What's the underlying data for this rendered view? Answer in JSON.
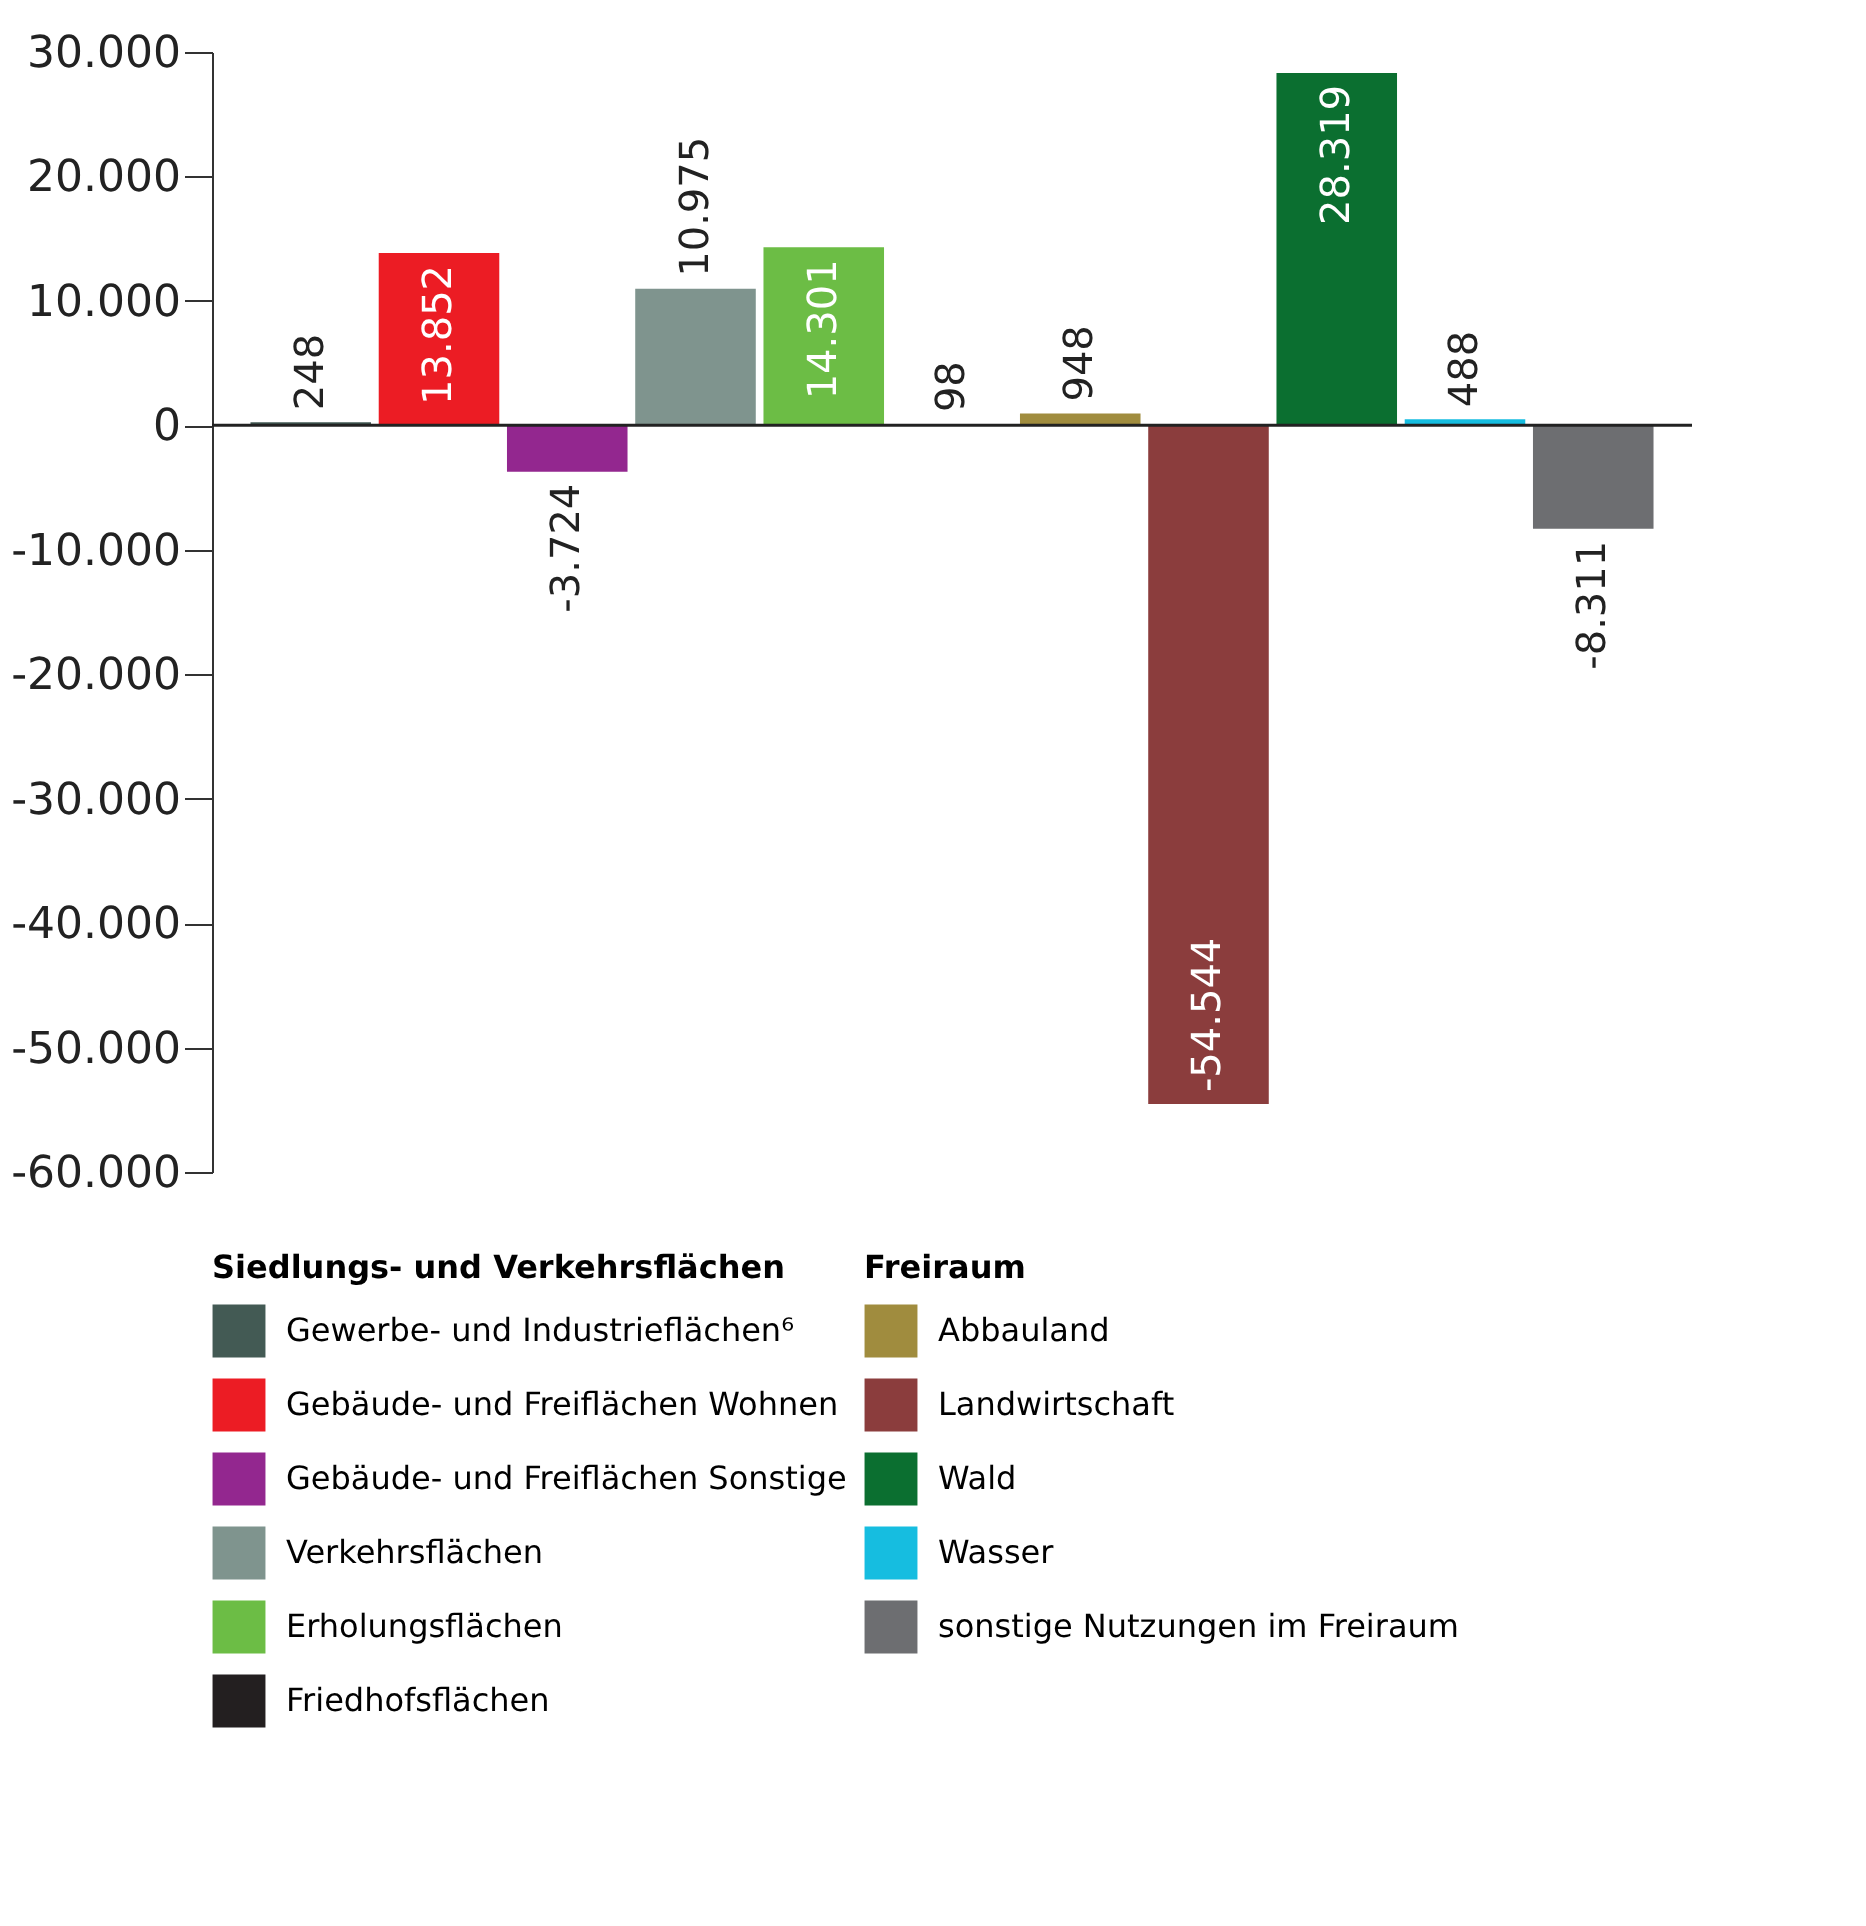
{
  "chart_data": {
    "type": "bar",
    "categories": [
      null,
      null,
      null,
      null,
      null,
      null,
      null,
      null,
      null,
      null,
      null
    ],
    "legend_title": "Siedlungs- und Verkehrsflächen",
    "annotations": [
      "Freiraum"
    ],
    "series": [
      {
        "name": "Gewerbe- und Industrieflächen⁶",
        "color": "#435a54",
        "values": [
          248,
          null,
          null,
          null,
          null,
          null,
          null,
          null,
          null,
          null,
          null
        ],
        "value_labels": [
          "248",
          null,
          null,
          null,
          null,
          null,
          null,
          null,
          null,
          null,
          null
        ]
      },
      {
        "name": "Gebäude- und Freiflächen Wohnen",
        "color": "#ec1c24",
        "values": [
          null,
          13852,
          null,
          null,
          null,
          null,
          null,
          null,
          null,
          null,
          null
        ],
        "value_labels": [
          null,
          "13.852",
          null,
          null,
          null,
          null,
          null,
          null,
          null,
          null,
          null
        ]
      },
      {
        "name": "Gebäude- und Freiflächen Sonstige",
        "color": "#93278f",
        "values": [
          null,
          null,
          -3724,
          null,
          null,
          null,
          null,
          null,
          null,
          null,
          null
        ],
        "value_labels": [
          null,
          null,
          "-3.724",
          null,
          null,
          null,
          null,
          null,
          null,
          null,
          null
        ]
      },
      {
        "name": "Verkehrsflächen",
        "color": "#7f948e",
        "values": [
          null,
          null,
          null,
          10975,
          null,
          null,
          null,
          null,
          null,
          null,
          null
        ],
        "value_labels": [
          null,
          null,
          null,
          "10.975",
          null,
          null,
          null,
          null,
          null,
          null,
          null
        ]
      },
      {
        "name": "Erholungsflächen",
        "color": "#6cbd45",
        "values": [
          null,
          null,
          null,
          null,
          14301,
          null,
          null,
          null,
          null,
          null,
          null
        ],
        "value_labels": [
          null,
          null,
          null,
          null,
          "14.301",
          null,
          null,
          null,
          null,
          null,
          null
        ]
      },
      {
        "name": "Friedhofsflächen",
        "color": "#231f20",
        "values": [
          null,
          null,
          null,
          null,
          null,
          98,
          null,
          null,
          null,
          null,
          null
        ],
        "value_labels": [
          null,
          null,
          null,
          null,
          null,
          "98",
          null,
          null,
          null,
          null,
          null
        ]
      },
      {
        "name": "Abbauland",
        "color": "#a08c3e",
        "values": [
          null,
          null,
          null,
          null,
          null,
          null,
          948,
          null,
          null,
          null,
          null
        ],
        "value_labels": [
          null,
          null,
          null,
          null,
          null,
          null,
          "948",
          null,
          null,
          null,
          null
        ]
      },
      {
        "name": "Landwirtschaft",
        "color": "#8b3d3d",
        "values": [
          null,
          null,
          null,
          null,
          null,
          null,
          null,
          -54544,
          null,
          null,
          null
        ],
        "value_labels": [
          null,
          null,
          null,
          null,
          null,
          null,
          null,
          "-54.544",
          null,
          null,
          null
        ]
      },
      {
        "name": "Wald",
        "color": "#0b6f30",
        "values": [
          null,
          null,
          null,
          null,
          null,
          null,
          null,
          null,
          28319,
          null,
          null
        ],
        "value_labels": [
          null,
          null,
          null,
          null,
          null,
          null,
          null,
          null,
          "28.319",
          null,
          null
        ]
      },
      {
        "name": "Wasser",
        "color": "#16bde0",
        "values": [
          null,
          null,
          null,
          null,
          null,
          null,
          null,
          null,
          null,
          488,
          null
        ],
        "value_labels": [
          null,
          null,
          null,
          null,
          null,
          null,
          null,
          null,
          null,
          "488",
          null
        ]
      },
      {
        "name": "sonstige Nutzungen im Freiraum",
        "color": "#6d6e71",
        "values": [
          null,
          null,
          null,
          null,
          null,
          null,
          null,
          null,
          null,
          null,
          -8311
        ],
        "value_labels": [
          null,
          null,
          null,
          null,
          null,
          null,
          null,
          null,
          null,
          null,
          "-8.311"
        ]
      }
    ],
    "ylim": [
      -60000,
      30000
    ],
    "yticks": [
      {
        "value": -60000,
        "label": "-60.000"
      },
      {
        "value": -50000,
        "label": "-50.000"
      },
      {
        "value": -40000,
        "label": "-40.000"
      },
      {
        "value": -30000,
        "label": "-30.000"
      },
      {
        "value": -20000,
        "label": "-20.000"
      },
      {
        "value": -10000,
        "label": "-10.000"
      },
      0,
      {
        "value": 10000,
        "label": "10.000"
      },
      {
        "value": 20000,
        "label": "20.000"
      },
      {
        "value": 30000,
        "label": "30.000"
      }
    ],
    "ref_lines": [
      {
        "axis": "y",
        "value": 0,
        "color": "#222222"
      }
    ],
    "tick_labels": "y",
    "grid": false,
    "legend": "bottom"
  }
}
